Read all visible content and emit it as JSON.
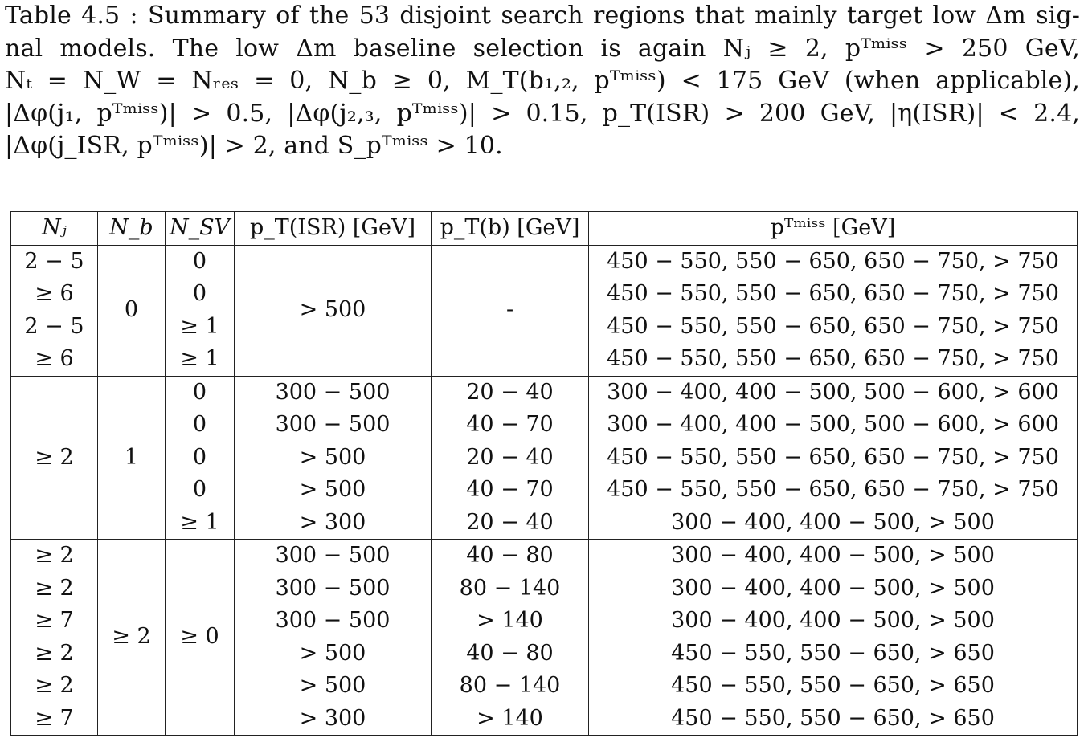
{
  "caption": {
    "lines": [
      "Table 4.5 : Summary of the 53 disjoint search regions that mainly target low Δm sig-",
      "nal models.  The low Δm baseline selection is again Nⱼ ≥ 2, pᵀᵐⁱˢˢ > 250 GeV,",
      "Nₜ = N_W = Nᵣₑₛ = 0, N_b ≥ 0, M_T(b₁,₂, pᵀᵐⁱˢˢ) < 175 GeV (when applicable),",
      "|Δφ(j₁, pᵀᵐⁱˢˢ)| > 0.5,   |Δφ(j₂,₃, pᵀᵐⁱˢˢ)| > 0.15, p_T(ISR) > 200 GeV, |η(ISR)| < 2.4,",
      "|Δφ(j_ISR, pᵀᵐⁱˢˢ)| > 2, and S_pᵀᵐⁱˢˢ > 10."
    ]
  },
  "table": {
    "headers": [
      "Nⱼ",
      "N_b",
      "N_SV",
      "p_T(ISR) [GeV]",
      "p_T(b) [GeV]",
      "pᵀᵐⁱˢˢ [GeV]"
    ],
    "groups": [
      {
        "nb": "0",
        "ptisr_merged": "> 500",
        "ptb_merged": "-",
        "rows": [
          {
            "nj": "2 − 5",
            "nsv": "0",
            "met": "450 − 550, 550 − 650, 650 − 750, > 750"
          },
          {
            "nj": "≥ 6",
            "nsv": "0",
            "met": "450 − 550, 550 − 650, 650 − 750, > 750"
          },
          {
            "nj": "2 − 5",
            "nsv": "≥ 1",
            "met": "450 − 550, 550 − 650, 650 − 750, > 750"
          },
          {
            "nj": "≥ 6",
            "nsv": "≥ 1",
            "met": "450 − 550, 550 − 650, 650 − 750, > 750"
          }
        ]
      },
      {
        "nj_merged": "≥ 2",
        "nb": "1",
        "rows": [
          {
            "nsv": "0",
            "ptisr": "300 − 500",
            "ptb": "20 − 40",
            "met": "300 − 400, 400 − 500, 500 − 600, > 600"
          },
          {
            "nsv": "0",
            "ptisr": "300 − 500",
            "ptb": "40 − 70",
            "met": "300 − 400, 400 − 500, 500 − 600, > 600"
          },
          {
            "nsv": "0",
            "ptisr": "> 500",
            "ptb": "20 − 40",
            "met": "450 − 550, 550 − 650, 650 − 750, > 750"
          },
          {
            "nsv": "0",
            "ptisr": "> 500",
            "ptb": "40 − 70",
            "met": "450 − 550, 550 − 650, 650 − 750, > 750"
          },
          {
            "nsv": "≥ 1",
            "ptisr": "> 300",
            "ptb": "20 − 40",
            "met": "300 − 400, 400 − 500, > 500"
          }
        ]
      },
      {
        "nb": "≥ 2",
        "nsv_merged": "≥ 0",
        "rows": [
          {
            "nj": "≥ 2",
            "ptisr": "300 − 500",
            "ptb": "40 − 80",
            "met": "300 − 400, 400 − 500, > 500"
          },
          {
            "nj": "≥ 2",
            "ptisr": "300 − 500",
            "ptb": "80 − 140",
            "met": "300 − 400, 400 − 500, > 500"
          },
          {
            "nj": "≥ 7",
            "ptisr": "300 − 500",
            "ptb": "> 140",
            "met": "300 − 400, 400 − 500, > 500"
          },
          {
            "nj": "≥ 2",
            "ptisr": "> 500",
            "ptb": "40 − 80",
            "met": "450 − 550, 550 − 650, > 650"
          },
          {
            "nj": "≥ 2",
            "ptisr": "> 500",
            "ptb": "80 − 140",
            "met": "450 − 550, 550 − 650, > 650"
          },
          {
            "nj": "≥ 7",
            "ptisr": "> 300",
            "ptb": "> 140",
            "met": "450 − 550, 550 − 650, > 650"
          }
        ]
      }
    ]
  }
}
